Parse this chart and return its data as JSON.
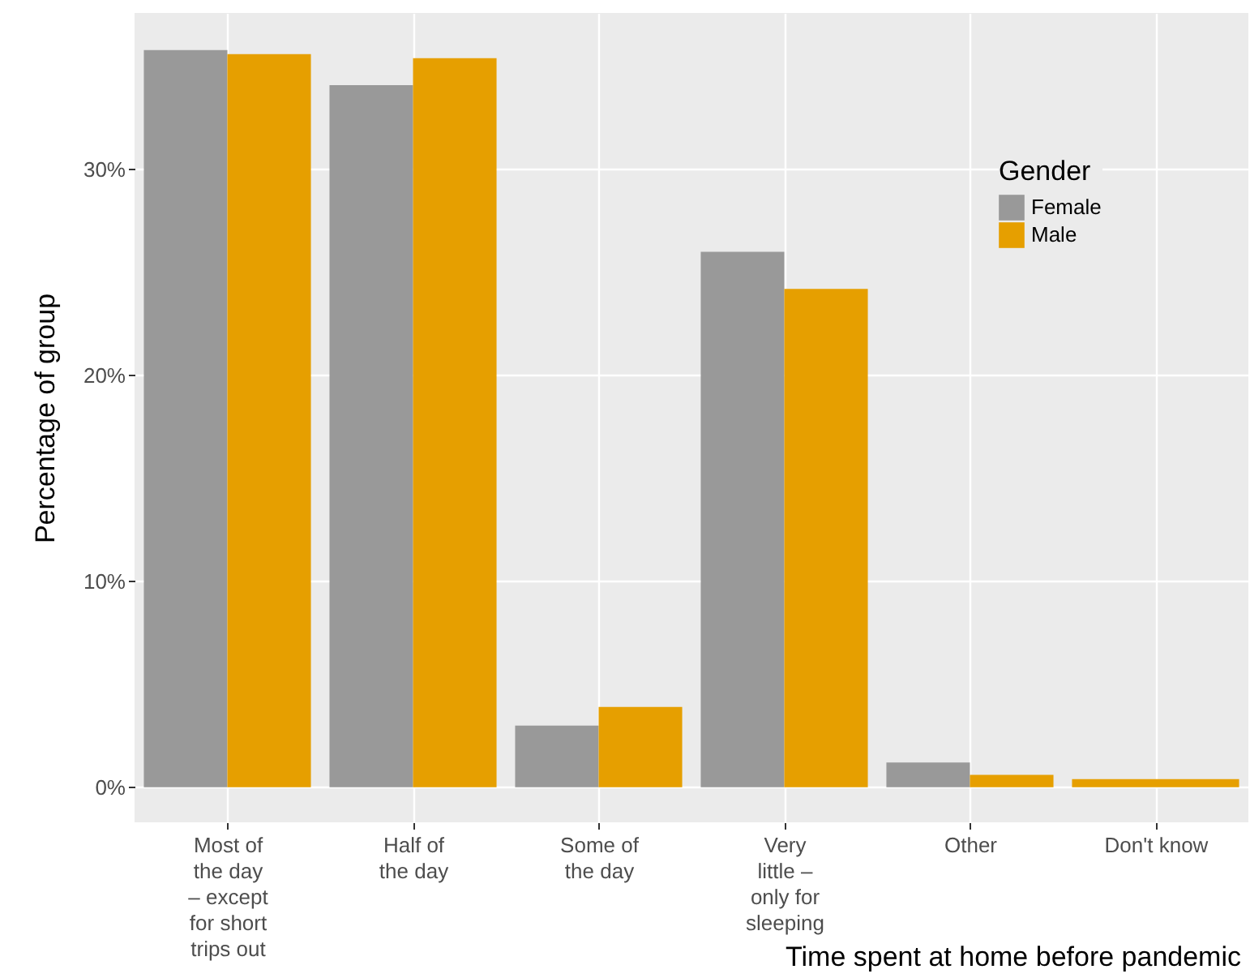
{
  "chart_data": {
    "type": "bar",
    "xlabel": "Time spent at home before pandemic",
    "ylabel": "Percentage of group",
    "legend_title": "Gender",
    "legend": "top right",
    "grid": true,
    "categories": [
      "Most of the day – except for short trips out",
      "Half of the day",
      "Some of the day",
      "Very little – only for sleeping",
      "Other",
      "Don't know"
    ],
    "series": [
      {
        "name": "Female",
        "color": "#999999",
        "values": [
          35.8,
          34.1,
          3.0,
          26.0,
          1.2,
          null
        ]
      },
      {
        "name": "Male",
        "color": "#e69f00",
        "values": [
          35.6,
          35.4,
          3.9,
          24.2,
          0.6,
          0.4
        ]
      }
    ],
    "ylim": [
      -1.7,
      37.6
    ],
    "yticks": [
      {
        "value": 0,
        "label": "0%"
      },
      {
        "value": 10,
        "label": "10%"
      },
      {
        "value": 20,
        "label": "20%"
      },
      {
        "value": 30,
        "label": "30%"
      }
    ]
  }
}
